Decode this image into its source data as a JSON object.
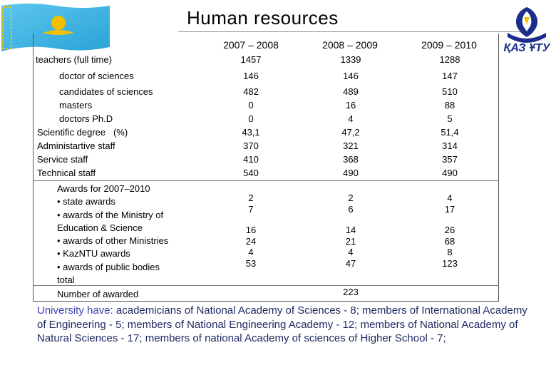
{
  "title": "Human resources",
  "logo_text": "ҚАЗ ҰТУ",
  "columns": [
    "2007 – 2008",
    "2008 – 2009",
    "2009 – 2010"
  ],
  "rows": [
    {
      "label": "teachers (full time)",
      "values": [
        "1457",
        "1339",
        "1288"
      ]
    },
    {
      "label": "doctor of sciences",
      "values": [
        "146",
        "146",
        "147"
      ]
    },
    {
      "label": "candidates of sciences",
      "values": [
        "482",
        "489",
        "510"
      ]
    },
    {
      "label": "masters",
      "values": [
        "0",
        "16",
        "88"
      ]
    },
    {
      "label": "doctors Ph.D",
      "values": [
        "0",
        "4",
        "5"
      ]
    },
    {
      "label": "Scientific degree   (%)",
      "values": [
        "43,1",
        "47,2",
        "51,4"
      ]
    },
    {
      "label": "Administartive staff",
      "values": [
        "370",
        "321",
        "314"
      ]
    },
    {
      "label": "Service staff",
      "values": [
        "410",
        "368",
        "357"
      ]
    },
    {
      "label": "Technical staff",
      "values": [
        "540",
        "490",
        "490"
      ]
    }
  ],
  "awards": {
    "lines": [
      "Awards for 2007–2010",
      "• state awards",
      "• awards of the Ministry  of",
      "Education & Science",
      "• awards of other Ministries",
      "• KazNTU awards",
      "• awards of public bodies",
      "total"
    ],
    "group1": [
      [
        "2",
        "7"
      ],
      [
        "2",
        "6"
      ],
      [
        "4",
        "17"
      ]
    ],
    "group2": [
      [
        "16",
        "24",
        "4",
        "53"
      ],
      [
        "14",
        "21",
        "4",
        "47"
      ],
      [
        "26",
        "68",
        "8",
        "123"
      ]
    ],
    "number_label": "Number of awarded",
    "number_value": "223"
  },
  "note": {
    "lead": "University have:",
    "text": " academicians of National Academy of Sciences - 8; members of International Academy of Engineering - 5; members of National Engineering Academy - 12; members of National Academy of Natural Sciences - 17; members of national Academy of sciences of Higher School - 7;"
  },
  "colors": {
    "flag_blue": "#35b1e0",
    "flag_gold": "#f2c000",
    "logo_blue": "#1c2d8c",
    "note_text": "#1f2a63",
    "note_lead": "#3b3fb5"
  }
}
